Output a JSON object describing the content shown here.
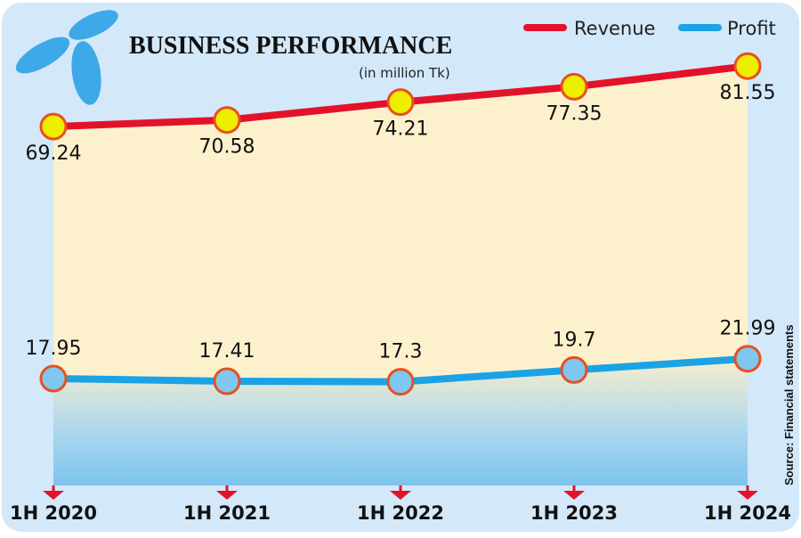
{
  "chart_data": {
    "type": "line",
    "title": "BUSINESS PERFORMANCE",
    "subtitle": "(in million Tk)",
    "categories": [
      "1H 2020",
      "1H 2021",
      "1H 2022",
      "1H 2023",
      "1H 2024"
    ],
    "series": [
      {
        "name": "Revenue",
        "color": "#e3122a",
        "values": [
          69.24,
          70.58,
          74.21,
          77.35,
          81.55
        ],
        "labels": [
          "69.24",
          "70.58",
          "74.21",
          "77.35",
          "81.55"
        ]
      },
      {
        "name": "Profit",
        "color": "#1aa3e6",
        "values": [
          17.95,
          17.41,
          17.3,
          19.7,
          21.99
        ],
        "labels": [
          "17.95",
          "17.41",
          "17.3",
          "19.7",
          "21.99"
        ]
      }
    ],
    "ylim": [
      -3.8,
      95
    ],
    "grid": false,
    "legend": "top-right",
    "source": "Source: Financial statements"
  }
}
